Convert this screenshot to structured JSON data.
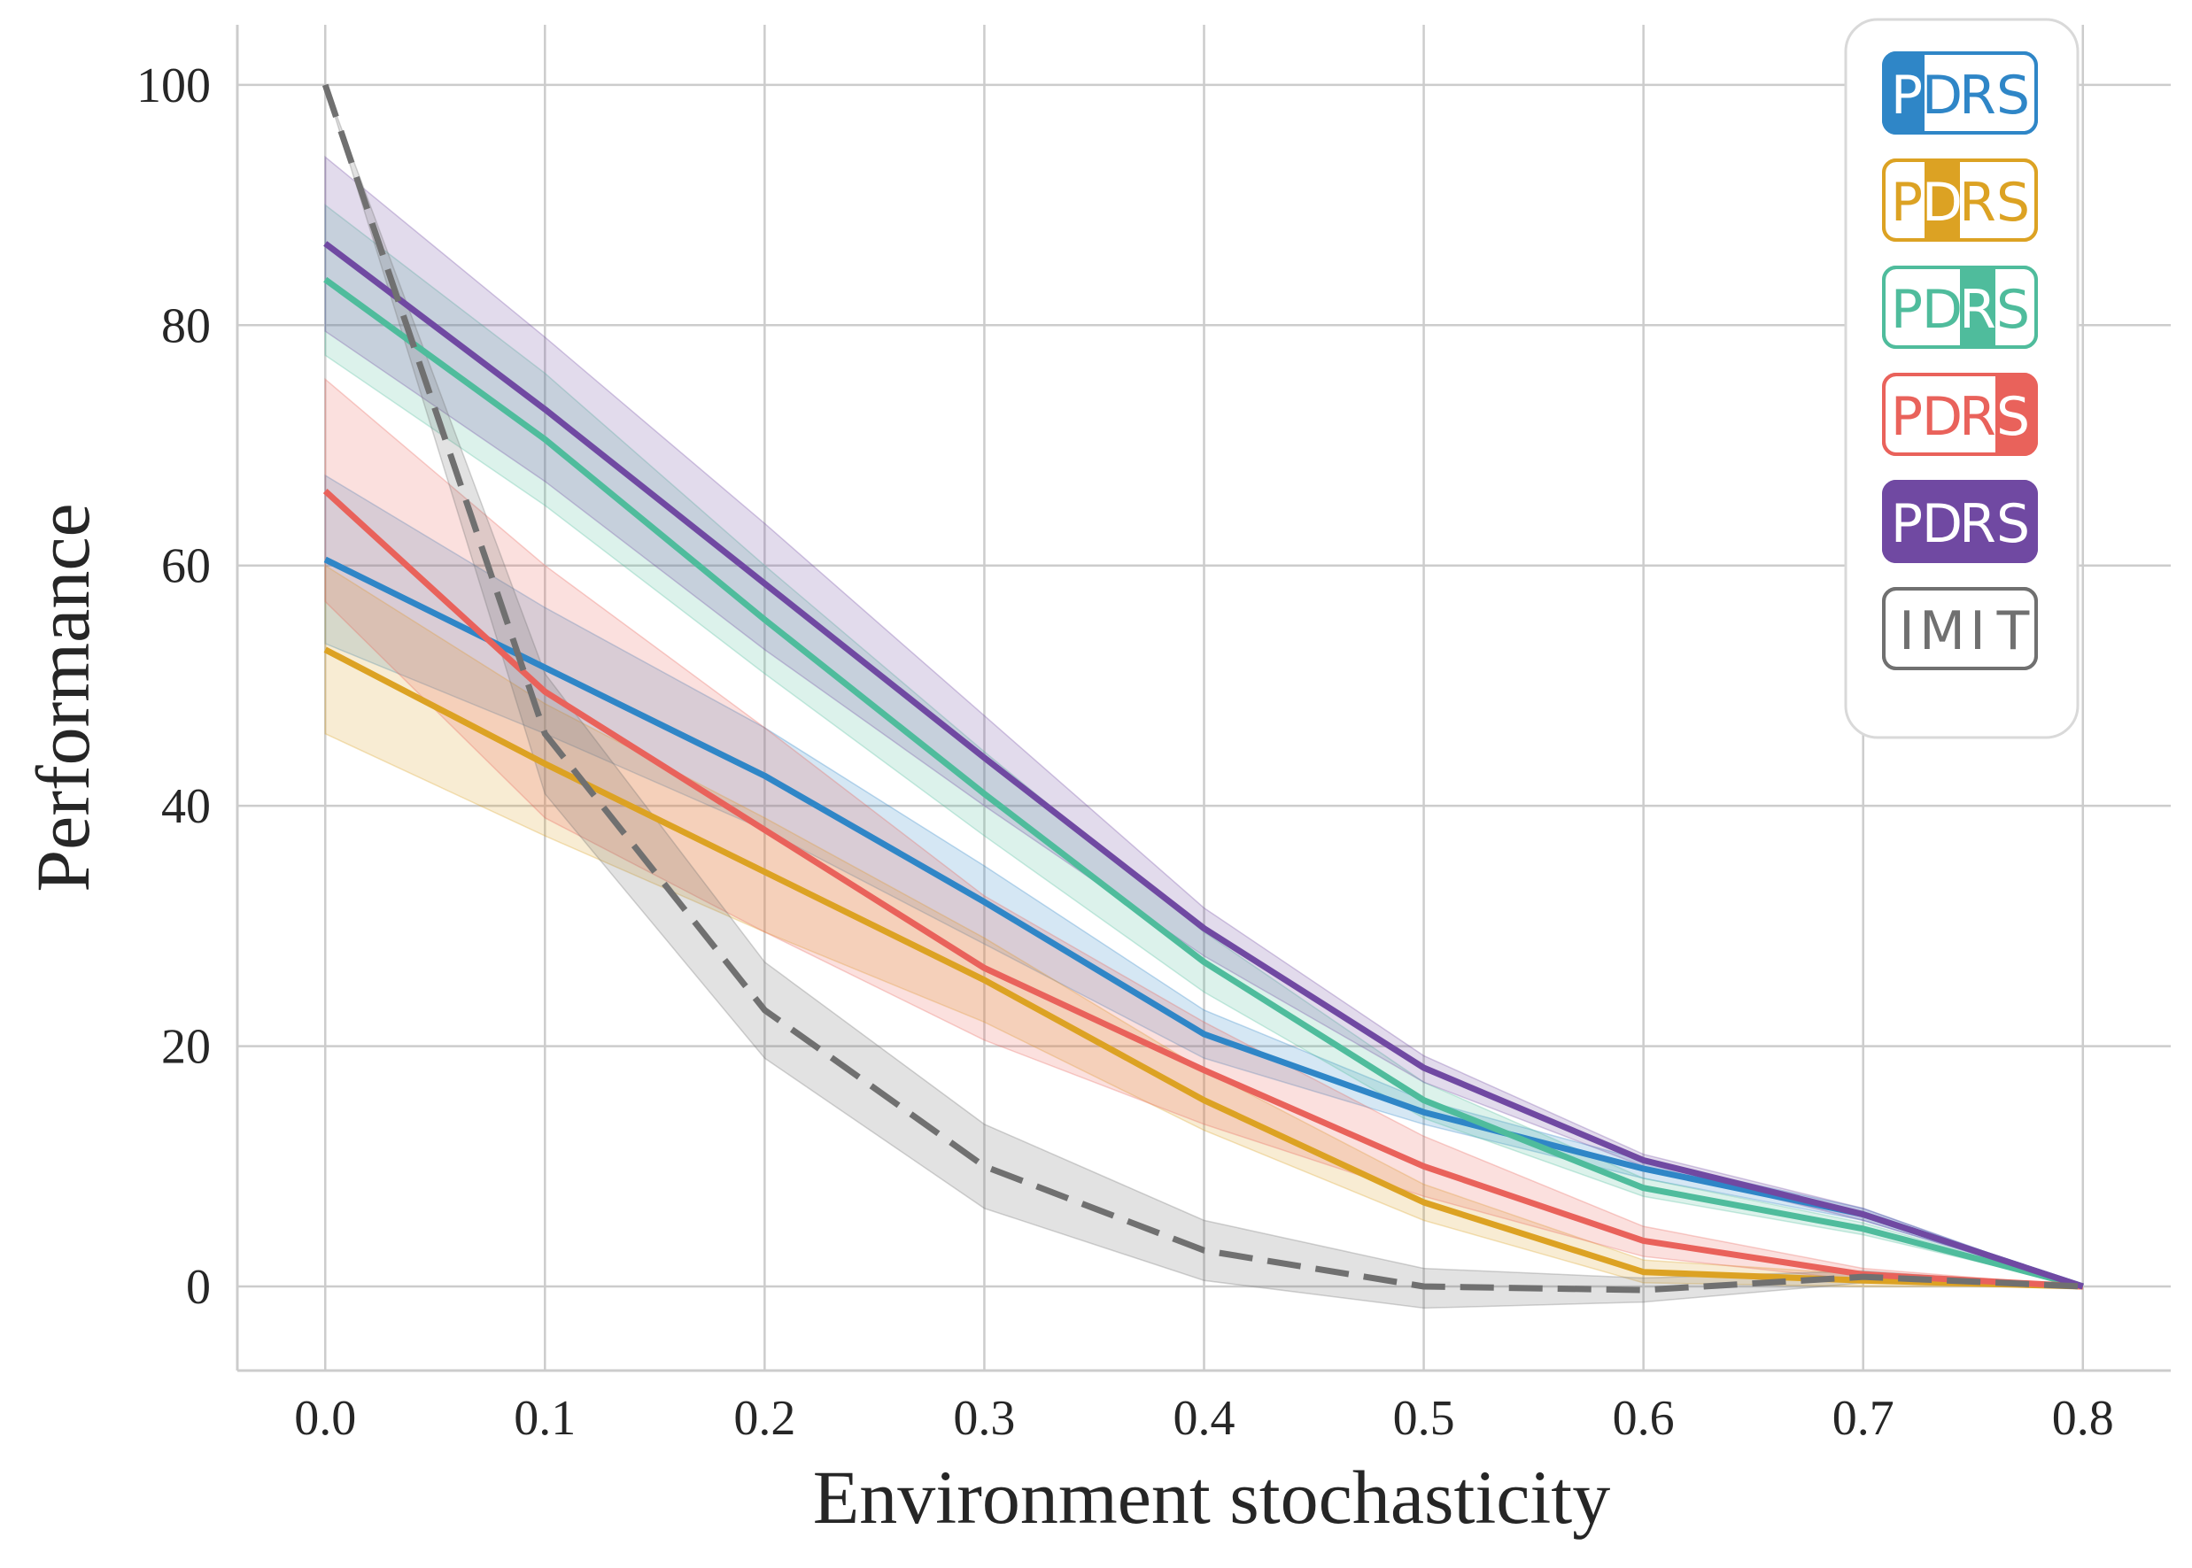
{
  "chart_data": {
    "type": "line",
    "title": "",
    "xlabel": "Environment stochasticity",
    "ylabel": "Performance",
    "x": [
      0.0,
      0.1,
      0.2,
      0.3,
      0.4,
      0.5,
      0.6,
      0.7,
      0.8
    ],
    "x_tick_labels": [
      "0.0",
      "0.1",
      "0.2",
      "0.3",
      "0.4",
      "0.5",
      "0.6",
      "0.7",
      "0.8"
    ],
    "y_ticks": [
      0,
      20,
      40,
      60,
      80,
      100
    ],
    "y_tick_labels": [
      "0",
      "20",
      "40",
      "60",
      "80",
      "100"
    ],
    "xlim": [
      -0.04,
      0.84
    ],
    "ylim": [
      -7,
      105
    ],
    "grid": true,
    "legend_position": "top-right",
    "series": [
      {
        "name": "PDRS",
        "highlight_letter": "P",
        "color": "#2f86c7",
        "dashed": false,
        "values": [
          60.5,
          51.5,
          42.5,
          32,
          21,
          14.5,
          9.8,
          6,
          0
        ],
        "lower": [
          53.5,
          46,
          38,
          28.5,
          19,
          13.5,
          9,
          5.5,
          0
        ],
        "upper": [
          67.5,
          56.5,
          46.5,
          35,
          23,
          15.5,
          10.5,
          6.5,
          0
        ]
      },
      {
        "name": "PDRS",
        "highlight_letter": "D",
        "color": "#dca223",
        "dashed": false,
        "values": [
          53,
          43.5,
          34.5,
          25.5,
          15.5,
          7,
          1.2,
          0.5,
          0
        ],
        "lower": [
          46,
          37.5,
          29.5,
          22,
          13,
          5.5,
          0.3,
          0,
          0
        ],
        "upper": [
          60,
          48.5,
          39,
          29,
          18,
          8.5,
          2.2,
          1,
          0
        ]
      },
      {
        "name": "PDRS",
        "highlight_letter": "R",
        "color": "#4fbc9c",
        "dashed": false,
        "values": [
          83.8,
          70.5,
          55.5,
          41,
          27,
          15.5,
          8.2,
          4.8,
          0
        ],
        "lower": [
          77.5,
          65,
          51,
          37.5,
          24.5,
          14,
          7.5,
          4.3,
          0
        ],
        "upper": [
          90,
          76,
          60,
          44.5,
          29.5,
          17,
          9,
          5.3,
          0
        ]
      },
      {
        "name": "PDRS",
        "highlight_letter": "S",
        "color": "#e9625b",
        "dashed": false,
        "values": [
          66.2,
          49.5,
          38,
          26.5,
          18,
          10,
          3.8,
          1,
          0
        ],
        "lower": [
          57,
          39,
          29.5,
          20.5,
          13.5,
          7.5,
          2.5,
          0.5,
          0
        ],
        "upper": [
          75.5,
          60,
          46.5,
          32.5,
          22,
          12.5,
          5,
          1.5,
          0
        ]
      },
      {
        "name": "PDRS",
        "highlight_letter": "ALL",
        "color": "#7049a2",
        "dashed": false,
        "values": [
          86.8,
          73,
          58.5,
          44,
          29.8,
          18.2,
          10.5,
          6,
          0
        ],
        "lower": [
          79.5,
          67,
          53,
          40,
          27.5,
          17,
          10,
          5.5,
          0
        ],
        "upper": [
          94,
          79,
          63.5,
          47.5,
          31.5,
          19.2,
          11,
          6.5,
          0
        ]
      },
      {
        "name": "IMIT",
        "highlight_letter": "NONE",
        "color": "#707070",
        "dashed": true,
        "values": [
          100,
          46,
          23,
          10,
          3,
          0,
          -0.3,
          0.8,
          0
        ],
        "lower": [
          100,
          41,
          19,
          6.5,
          0.5,
          -1.8,
          -1.3,
          0.3,
          0
        ],
        "upper": [
          100,
          51,
          27,
          13.5,
          5.5,
          1.5,
          0.7,
          1.3,
          0
        ]
      }
    ]
  }
}
